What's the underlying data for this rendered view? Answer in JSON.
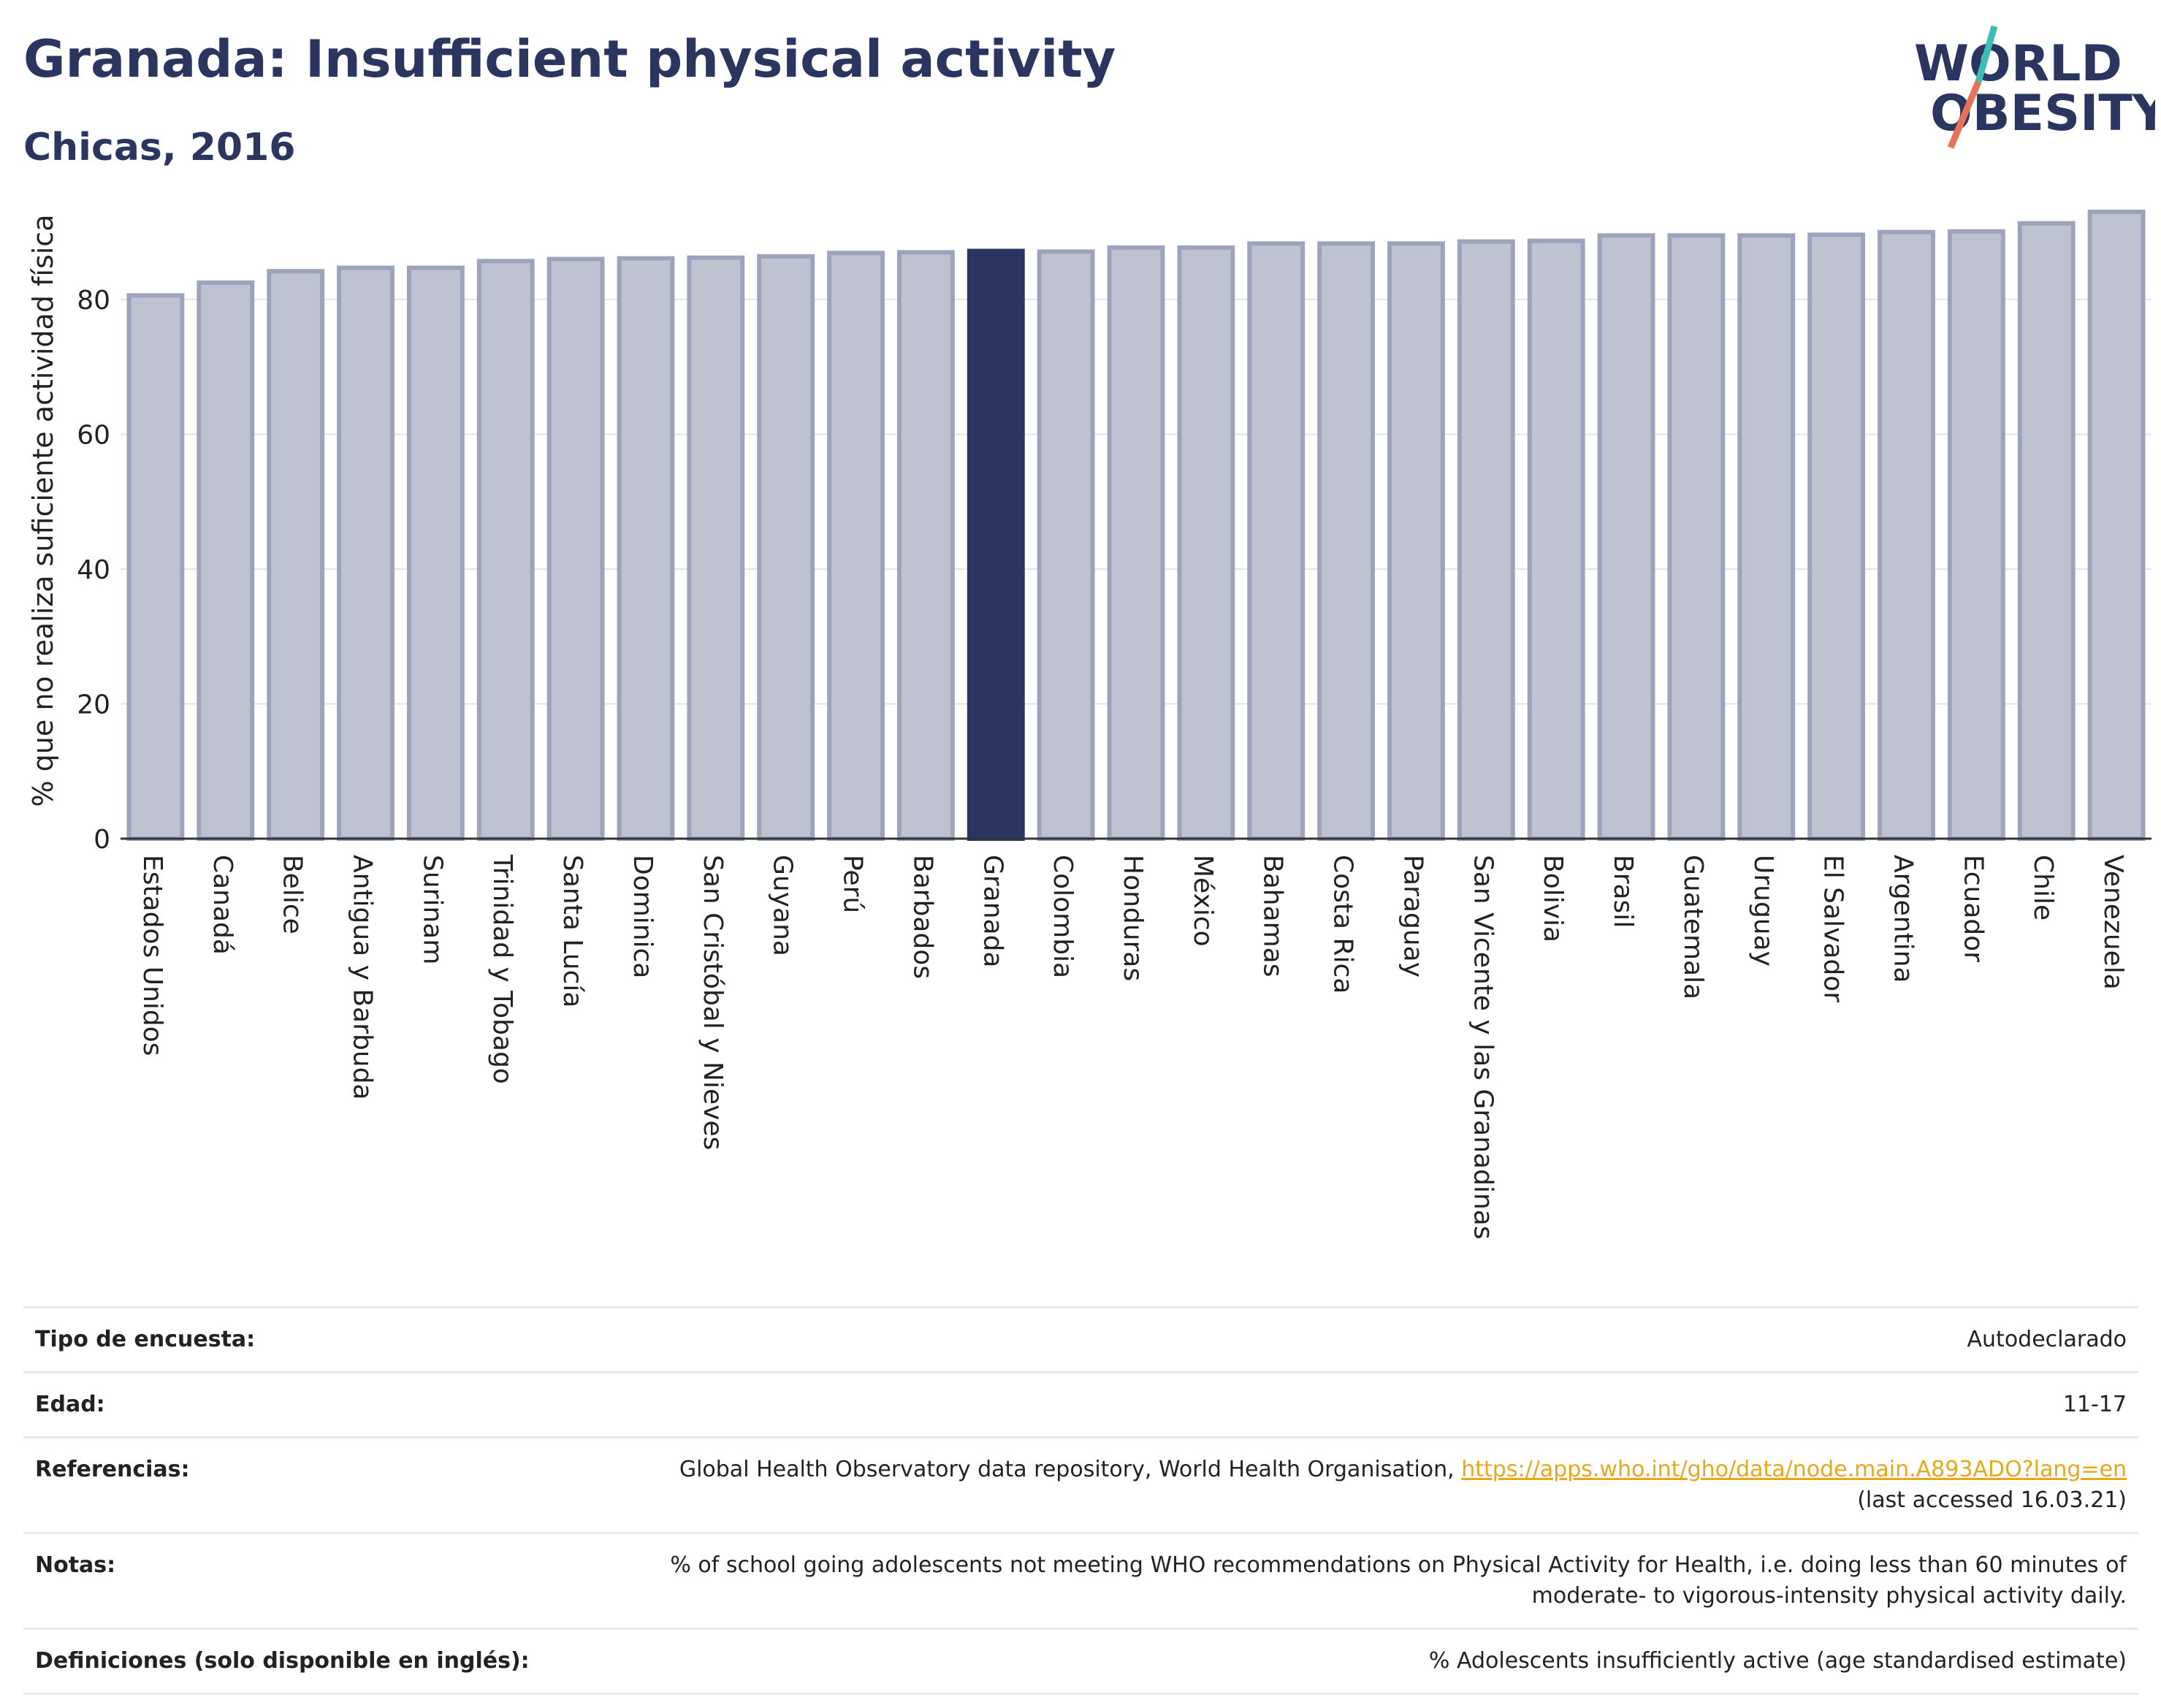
{
  "title": "Granada: Insufficient physical activity",
  "subtitle": "Chicas, 2016",
  "logo": {
    "line1": "WORLD",
    "line2": "OBESITY"
  },
  "colors": {
    "highlight": "#2a3560",
    "bar": "#bfc2d0",
    "bar_border": "#9ea3bd",
    "title": "#2a3560",
    "link": "#e8a81c"
  },
  "chart_data": {
    "type": "bar",
    "ylabel": "% que no realiza suficiente actividad física",
    "ylim": [
      0,
      93
    ],
    "yticks": [
      0,
      20,
      40,
      60,
      80
    ],
    "grid": true,
    "highlight": "Granada",
    "categories": [
      "Estados Unidos",
      "Canadá",
      "Belice",
      "Antigua y Barbuda",
      "Surinam",
      "Trinidad y Tobago",
      "Santa Lucía",
      "Dominica",
      "San Cristóbal y Nieves",
      "Guyana",
      "Perú",
      "Barbados",
      "Granada",
      "Colombia",
      "Honduras",
      "México",
      "Bahamas",
      "Costa Rica",
      "Paraguay",
      "San Vicente y las Granadinas",
      "Bolivia",
      "Brasil",
      "Guatemala",
      "Uruguay",
      "El Salvador",
      "Argentina",
      "Ecuador",
      "Chile",
      "Venezuela"
    ],
    "values": [
      80.6,
      82.5,
      84.2,
      84.7,
      84.7,
      85.7,
      86.0,
      86.1,
      86.2,
      86.4,
      86.9,
      87.0,
      87.2,
      87.1,
      87.7,
      87.7,
      88.3,
      88.3,
      88.3,
      88.6,
      88.7,
      89.5,
      89.5,
      89.5,
      89.6,
      90.0,
      90.1,
      91.3,
      93.0
    ]
  },
  "info": [
    {
      "label": "Tipo de encuesta:",
      "value": "Autodeclarado"
    },
    {
      "label": "Edad:",
      "value": "11-17"
    },
    {
      "label": "Referencias:",
      "value": "Global Health Observatory data repository, World Health Organisation,",
      "link": "https://apps.who.int/gho/data/node.main.A893ADO?lang=en",
      "value2": "(last accessed 16.03.21)"
    },
    {
      "label": "Notas:",
      "value": "% of school going adolescents not meeting WHO recommendations on Physical Activity for Health, i.e. doing less than 60 minutes of",
      "value2": "moderate- to vigorous-intensity physical activity daily."
    },
    {
      "label": "Definiciones (solo disponible en inglés):",
      "value": "% Adolescents insufficiently active (age standardised estimate)"
    }
  ]
}
